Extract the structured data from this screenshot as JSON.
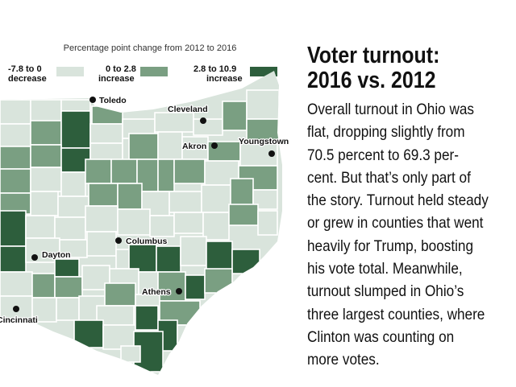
{
  "map": {
    "caption": "Percentage point change from 2012 to 2016",
    "legend": [
      {
        "line1": "-7.8 to 0",
        "line2": "decrease",
        "color": "#d9e4dc"
      },
      {
        "line1": "0 to 2.8",
        "line2": "increase",
        "color": "#7a9f82"
      },
      {
        "line1": "2.8 to 10.9",
        "line2": "increase",
        "color": "#2d5e3c"
      }
    ],
    "colors": {
      "decrease": "#d9e4dc",
      "moderate_increase": "#7a9f82",
      "large_increase": "#2d5e3c",
      "county_border": "#ffffff"
    },
    "cities": [
      "Toledo",
      "Cleveland",
      "Akron",
      "Youngstown",
      "Columbus",
      "Dayton",
      "Athens",
      "Cincinnati"
    ]
  },
  "article": {
    "headline_line1": "Voter turnout:",
    "headline_line2": "2016 vs. 2012",
    "body_lines": [
      "Overall turnout in Ohio was",
      "flat, dropping slightly from",
      "70.5 percent to 69.3 per-",
      "cent. But that’s only part of",
      "the story. Turnout held steady",
      "or grew in counties that went",
      "heavily for Trump, boosting",
      "his vote total. Meanwhile,",
      "turnout slumped in Ohio’s",
      "three largest counties, where",
      "Clinton was counting on",
      "more votes."
    ]
  }
}
